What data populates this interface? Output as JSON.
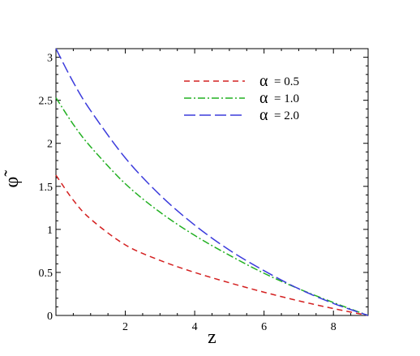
{
  "chart_data": {
    "type": "line",
    "xlabel": "z",
    "ylabel": "φ̃",
    "xlim": [
      0,
      9
    ],
    "ylim": [
      0,
      3.1
    ],
    "xticks": [
      {
        "value": 2,
        "label": "2"
      },
      {
        "value": 4,
        "label": "4"
      },
      {
        "value": 6,
        "label": "6"
      },
      {
        "value": 8,
        "label": "8"
      }
    ],
    "yticks": [
      {
        "value": 0,
        "label": "0"
      },
      {
        "value": 0.5,
        "label": "0.5"
      },
      {
        "value": 1,
        "label": "1"
      },
      {
        "value": 1.5,
        "label": "1.5"
      },
      {
        "value": 2,
        "label": "2"
      },
      {
        "value": 2.5,
        "label": "2.5"
      },
      {
        "value": 3,
        "label": "3"
      }
    ],
    "grid": false,
    "legend_position": "top-right",
    "series": [
      {
        "symbol": "α",
        "value_label": "= 0.5",
        "color": "#d42020",
        "dash": "dashed",
        "x": [
          0,
          0.5,
          1,
          2,
          3,
          4,
          5,
          6,
          7,
          8,
          9
        ],
        "y": [
          1.63,
          1.34,
          1.12,
          0.82,
          0.64,
          0.5,
          0.38,
          0.27,
          0.17,
          0.08,
          0.0
        ]
      },
      {
        "symbol": "α",
        "value_label": "= 1.0",
        "color": "#22b022",
        "dash": "dash-dot",
        "x": [
          0,
          0.5,
          1,
          2,
          3,
          4,
          5,
          6,
          7,
          8,
          9
        ],
        "y": [
          2.53,
          2.22,
          1.96,
          1.53,
          1.2,
          0.93,
          0.7,
          0.49,
          0.31,
          0.15,
          0.0
        ]
      },
      {
        "symbol": "α",
        "value_label": "= 2.0",
        "color": "#3b3bdc",
        "dash": "long-dashed",
        "x": [
          0,
          0.5,
          1,
          2,
          3,
          4,
          5,
          6,
          7,
          8,
          9
        ],
        "y": [
          3.1,
          2.71,
          2.38,
          1.83,
          1.4,
          1.05,
          0.76,
          0.52,
          0.31,
          0.14,
          0.0
        ]
      }
    ]
  }
}
